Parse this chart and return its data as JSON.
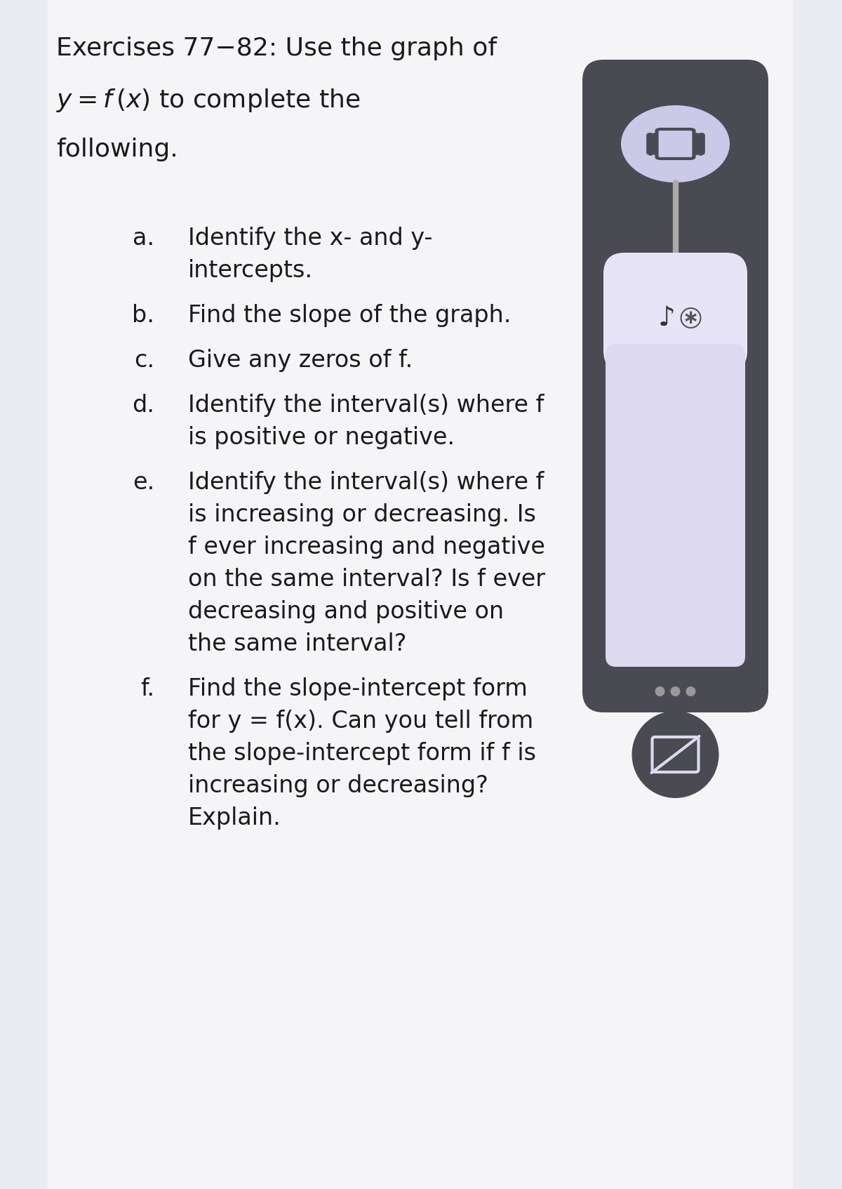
{
  "bg_color_left": "#eaecf2",
  "bg_color_main": "#f5f5f8",
  "text_color": "#1a1a1a",
  "phone": {
    "body_color": "#4a4a52",
    "screen_color": "#ddd9f0",
    "top_oval_color": "#ccc8e8",
    "slider_color": "#e8e4f8",
    "dots_color": "#888888",
    "btn_color": "#4a4a52"
  },
  "title_line1": "Exercises 77−82: Use the graph of",
  "title_line2_math": "y = f (x) to complete the",
  "title_line3": "following.",
  "items": [
    {
      "label": "a.",
      "lines": [
        "Identify the x- and y-",
        "intercepts."
      ]
    },
    {
      "label": "b.",
      "lines": [
        "Find the slope of the graph."
      ]
    },
    {
      "label": "c.",
      "lines": [
        "Give any zeros of f."
      ]
    },
    {
      "label": "d.",
      "lines": [
        "Identify the interval(s) where f",
        "is positive or negative."
      ]
    },
    {
      "label": "e.",
      "lines": [
        "Identify the interval(s) where f",
        "is increasing or decreasing. Is",
        "f ever increasing and negative",
        "on the same interval? Is f ever",
        "decreasing and positive on",
        "the same interval?"
      ]
    },
    {
      "label": "f.",
      "lines": [
        "Find the slope-intercept form",
        "for y = f(x). Can you tell from",
        "the slope-intercept form if f is",
        "increasing or decreasing?",
        "Explain."
      ]
    }
  ]
}
